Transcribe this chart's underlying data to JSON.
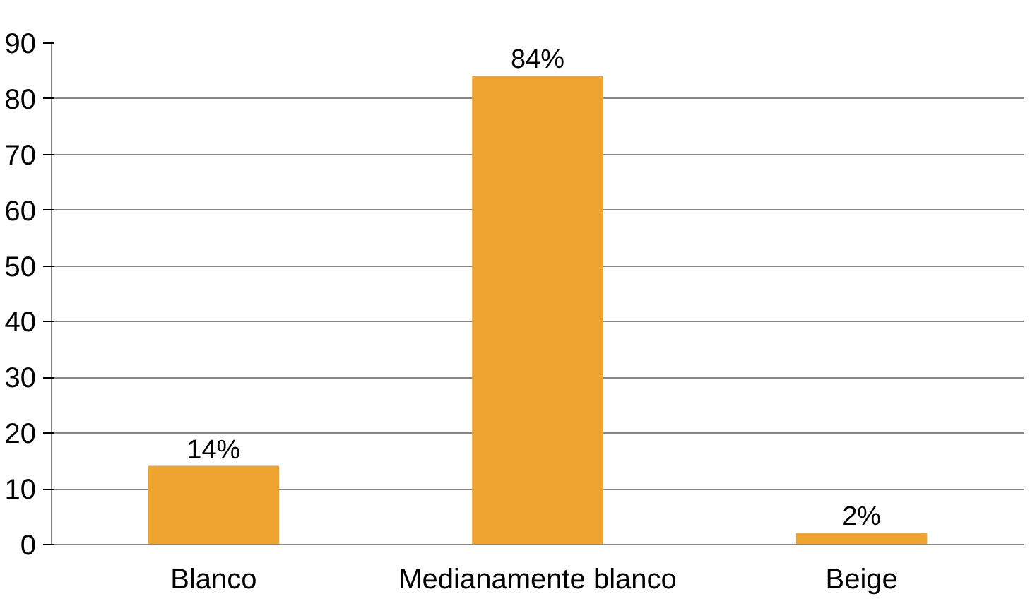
{
  "chart_data": {
    "type": "bar",
    "categories": [
      "Blanco",
      "Medianamente blanco",
      "Beige"
    ],
    "values": [
      14,
      84,
      2
    ],
    "value_labels": [
      "14%",
      "84%",
      "2%"
    ],
    "color": "#f0a430",
    "ylim": [
      0,
      90
    ],
    "yticks": [
      0,
      10,
      20,
      30,
      40,
      50,
      60,
      70,
      80,
      90
    ],
    "grid": "y"
  }
}
